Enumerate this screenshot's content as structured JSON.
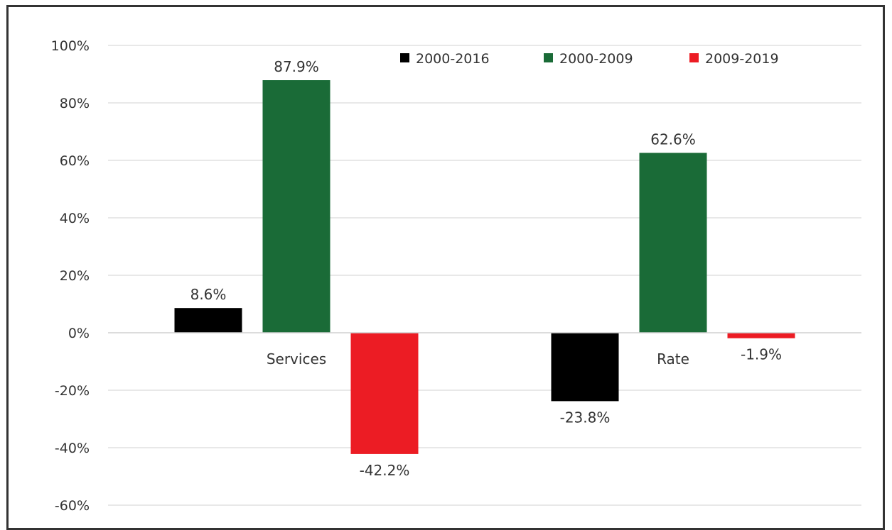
{
  "chart_data": {
    "type": "bar",
    "categories": [
      "Services",
      "Rate"
    ],
    "series": [
      {
        "name": "2000-2016",
        "values": [
          8.6,
          -23.8
        ],
        "labels": [
          "8.6%",
          "-23.8%"
        ]
      },
      {
        "name": "2000-2009",
        "values": [
          87.9,
          62.6
        ],
        "labels": [
          "87.9%",
          "62.6%"
        ]
      },
      {
        "name": "2009-2019",
        "values": [
          -42.2,
          -1.9
        ],
        "labels": [
          "-42.2%",
          "-1.9%"
        ]
      }
    ],
    "y_ticks": [
      "100%",
      "80%",
      "60%",
      "40%",
      "20%",
      "0%",
      "-20%",
      "-40%",
      "-60%"
    ],
    "ylim": [
      -60,
      100
    ],
    "grid": true,
    "legend_position": "top",
    "title": "",
    "xlabel": "",
    "ylabel": ""
  },
  "colors": {
    "2000-2016": "#000000",
    "2000-2009": "#1a6b37",
    "2009-2019": "#ec1c24",
    "grid": "#d9d9d9",
    "text": "#333333"
  }
}
